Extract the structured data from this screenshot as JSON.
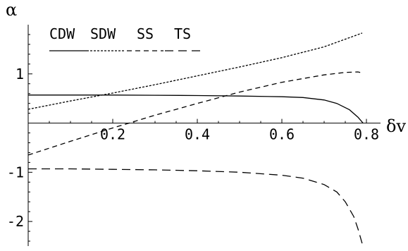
{
  "chart_data": {
    "type": "line",
    "xlabel": "δv",
    "ylabel": "α",
    "xlim": [
      0,
      0.8
    ],
    "ylim": [
      -2.5,
      1.9
    ],
    "x_ticks": [
      {
        "value": 0.2,
        "label": "0.2"
      },
      {
        "value": 0.4,
        "label": "0.4"
      },
      {
        "value": 0.6,
        "label": "0.6"
      },
      {
        "value": 0.8,
        "label": "0.8"
      }
    ],
    "y_ticks": [
      {
        "value": 1,
        "label": "1"
      },
      {
        "value": -1,
        "label": "-1"
      },
      {
        "value": -2,
        "label": "-2"
      }
    ],
    "grid": false,
    "legend": {
      "placement": "top-left",
      "entries": [
        {
          "label": "CDW",
          "style": "solid"
        },
        {
          "label": "SDW",
          "style": "dotted"
        },
        {
          "label": "SS",
          "style": "short-dash"
        },
        {
          "label": "TS",
          "style": "long-dash"
        }
      ]
    },
    "series": [
      {
        "name": "CDW",
        "style": "solid",
        "x": [
          0,
          0.1,
          0.2,
          0.3,
          0.4,
          0.5,
          0.6,
          0.65,
          0.7,
          0.73,
          0.76,
          0.78,
          0.792
        ],
        "y": [
          0.57,
          0.57,
          0.57,
          0.565,
          0.56,
          0.55,
          0.535,
          0.52,
          0.47,
          0.4,
          0.27,
          0.12,
          0.0
        ]
      },
      {
        "name": "SDW",
        "style": "dotted",
        "x": [
          0,
          0.1,
          0.2,
          0.3,
          0.4,
          0.5,
          0.6,
          0.7,
          0.79
        ],
        "y": [
          0.28,
          0.45,
          0.61,
          0.78,
          0.96,
          1.14,
          1.33,
          1.55,
          1.83
        ]
      },
      {
        "name": "SS",
        "style": "short-dash",
        "x": [
          0,
          0.1,
          0.2,
          0.25,
          0.3,
          0.4,
          0.5,
          0.6,
          0.7,
          0.75,
          0.78,
          0.79
        ],
        "y": [
          -0.65,
          -0.37,
          -0.1,
          0.03,
          0.16,
          0.4,
          0.63,
          0.83,
          0.98,
          1.03,
          1.04,
          1.02
        ]
      },
      {
        "name": "TS",
        "style": "long-dash",
        "x": [
          0,
          0.1,
          0.2,
          0.3,
          0.4,
          0.5,
          0.6,
          0.65,
          0.7,
          0.73,
          0.75,
          0.77,
          0.78,
          0.79
        ],
        "y": [
          -0.93,
          -0.93,
          -0.94,
          -0.95,
          -0.97,
          -1.0,
          -1.06,
          -1.12,
          -1.25,
          -1.4,
          -1.6,
          -1.9,
          -2.15,
          -2.45
        ]
      }
    ]
  }
}
